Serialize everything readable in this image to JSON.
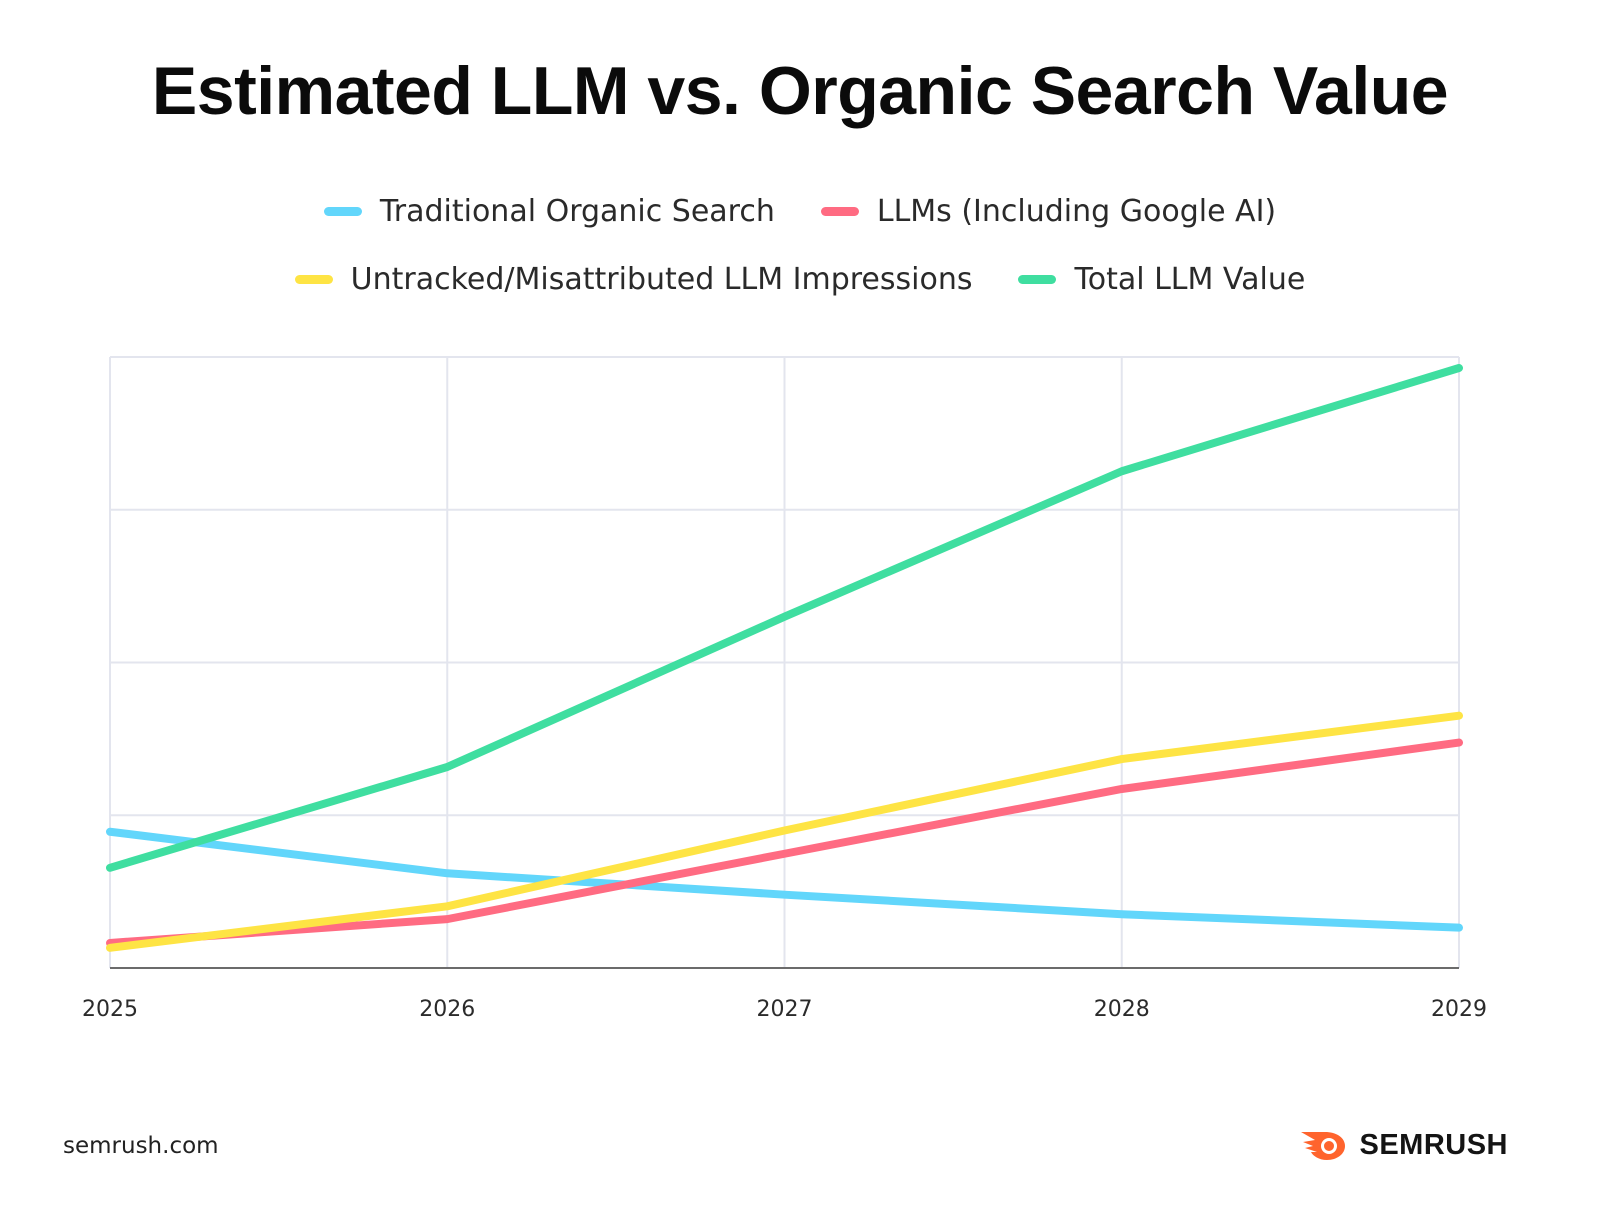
{
  "chart_data": {
    "type": "line",
    "title": "Estimated LLM vs. Organic Search Value",
    "xlabel": "",
    "ylabel": "",
    "x": [
      "2025",
      "2026",
      "2027",
      "2028",
      "2029"
    ],
    "ylim": [
      0,
      100
    ],
    "y_tick_labels_shown": false,
    "grid": true,
    "legend_position": "top-center",
    "series": [
      {
        "name": "Traditional Organic Search",
        "color": "#62d6fb",
        "values": [
          22.3,
          15.5,
          12.0,
          8.8,
          6.6
        ]
      },
      {
        "name": "LLMs (Including Google AI)",
        "color": "#ff6b82",
        "values": [
          4.1,
          8.0,
          18.7,
          29.3,
          36.9
        ]
      },
      {
        "name": "Untracked/Misattributed LLM Impressions",
        "color": "#fee444",
        "values": [
          3.3,
          10.1,
          22.5,
          34.2,
          41.3
        ]
      },
      {
        "name": "Total LLM Value",
        "color": "#3fdea0",
        "values": [
          16.4,
          32.9,
          57.5,
          81.3,
          98.2
        ]
      }
    ]
  },
  "legend_rows": [
    [
      0,
      1
    ],
    [
      2,
      3
    ]
  ],
  "footer": {
    "source": "semrush.com",
    "brand": "SEMRUSH",
    "brand_color": "#ff642d"
  }
}
